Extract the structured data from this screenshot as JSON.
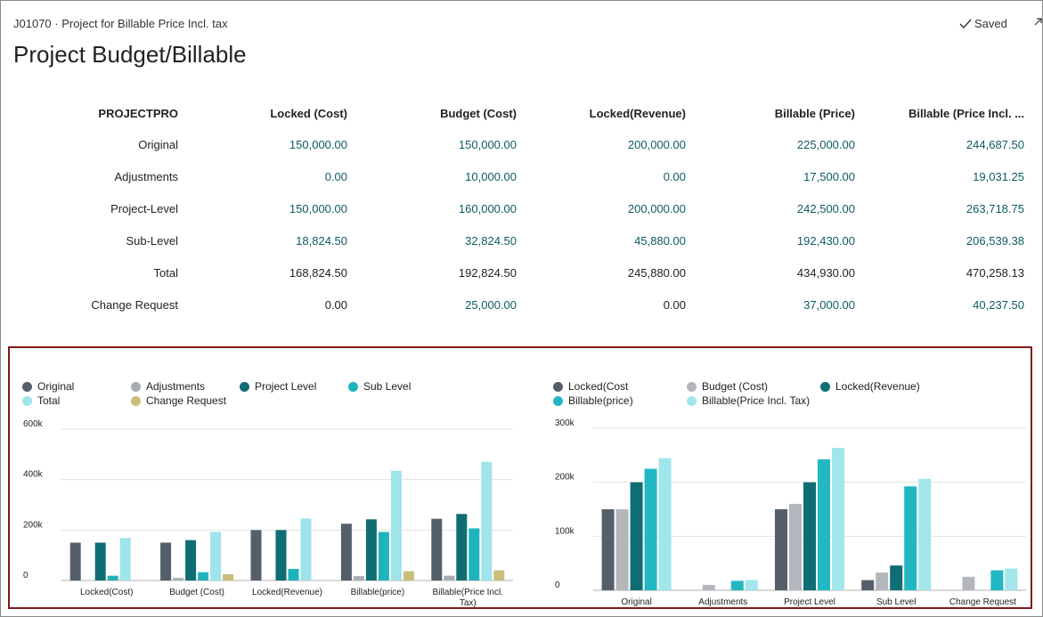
{
  "header": {
    "subtitle": "J01070 · Project for Billable Price Incl. tax",
    "saved_label": "Saved",
    "page_title": "Project Budget/Billable"
  },
  "table": {
    "corner": "PROJECTPRO",
    "columns": [
      "Locked (Cost)",
      "Budget (Cost)",
      "Locked(Revenue)",
      "Billable (Price)",
      "Billable (Price Incl. ..."
    ],
    "rows": [
      {
        "label": "Original",
        "values": [
          "150,000.00",
          "150,000.00",
          "200,000.00",
          "225,000.00",
          "244,687.50"
        ],
        "drill": [
          true,
          true,
          true,
          true,
          true
        ]
      },
      {
        "label": "Adjustments",
        "values": [
          "0.00",
          "10,000.00",
          "0.00",
          "17,500.00",
          "19,031.25"
        ],
        "drill": [
          true,
          true,
          true,
          true,
          true
        ]
      },
      {
        "label": "Project-Level",
        "values": [
          "150,000.00",
          "160,000.00",
          "200,000.00",
          "242,500.00",
          "263,718.75"
        ],
        "drill": [
          true,
          true,
          true,
          true,
          true
        ]
      },
      {
        "label": "Sub-Level",
        "values": [
          "18,824.50",
          "32,824.50",
          "45,880.00",
          "192,430.00",
          "206,539.38"
        ],
        "drill": [
          true,
          true,
          true,
          true,
          true
        ]
      },
      {
        "label": "Total",
        "values": [
          "168,824.50",
          "192,824.50",
          "245,880.00",
          "434,930.00",
          "470,258.13"
        ],
        "drill": [
          false,
          false,
          false,
          false,
          false
        ]
      },
      {
        "label": "Change Request",
        "values": [
          "0.00",
          "25,000.00",
          "0.00",
          "37,000.00",
          "40,237.50"
        ],
        "drill": [
          false,
          true,
          false,
          true,
          true
        ]
      }
    ]
  },
  "colors": {
    "original": "#555f6b",
    "adjustments": "#a8adb3",
    "project_level": "#0f6e74",
    "sub_level": "#1fb3bd",
    "total": "#9ee4ea",
    "change_request": "#c9bd78",
    "locked_cost": "#555f6b",
    "budget_cost": "#b3b7bc",
    "locked_revenue": "#0f6e74",
    "billable_price": "#22b7c2",
    "billable_incl": "#a2e6ec"
  },
  "chart_data": [
    {
      "type": "bar",
      "categories": [
        "Locked(Cost)",
        "Budget (Cost)",
        "Locked(Revenue)",
        "Billable(price)",
        "Billable(Price Incl. Tax)"
      ],
      "category_lines": [
        [
          "Locked(Cost)"
        ],
        [
          "Budget (Cost)"
        ],
        [
          "Locked(Revenue)"
        ],
        [
          "Billable(price)"
        ],
        [
          "Billable(Price Incl.",
          "Tax)"
        ]
      ],
      "series": [
        {
          "name": "Original",
          "color_key": "original",
          "values": [
            150000,
            150000,
            200000,
            225000,
            244687.5
          ]
        },
        {
          "name": "Adjustments",
          "color_key": "adjustments",
          "values": [
            0,
            10000,
            0,
            17500,
            19031.25
          ]
        },
        {
          "name": "Project Level",
          "color_key": "project_level",
          "values": [
            150000,
            160000,
            200000,
            242500,
            263718.75
          ]
        },
        {
          "name": "Sub Level",
          "color_key": "sub_level",
          "values": [
            18824.5,
            32824.5,
            45880,
            192430,
            206539.38
          ]
        },
        {
          "name": "Total",
          "color_key": "total",
          "values": [
            168824.5,
            192824.5,
            245880,
            434930,
            470258.13
          ]
        },
        {
          "name": "Change Request",
          "color_key": "change_request",
          "values": [
            0,
            25000,
            0,
            37000,
            40237.5
          ]
        }
      ],
      "ylim": [
        0,
        600000
      ],
      "yticks": [
        0,
        200000,
        400000,
        600000
      ],
      "ytick_labels": [
        "0",
        "200k",
        "400k",
        "600k"
      ],
      "legend": "top"
    },
    {
      "type": "bar",
      "categories": [
        "Original",
        "Adjustments",
        "Project Level",
        "Sub Level",
        "Change Request"
      ],
      "category_lines": [
        [
          "Original"
        ],
        [
          "Adjustments"
        ],
        [
          "Project Level"
        ],
        [
          "Sub Level"
        ],
        [
          "Change Request"
        ]
      ],
      "series": [
        {
          "name": "Locked(Cost",
          "color_key": "locked_cost",
          "values": [
            150000,
            0,
            150000,
            18824.5,
            0
          ]
        },
        {
          "name": "Budget (Cost)",
          "color_key": "budget_cost",
          "values": [
            150000,
            10000,
            160000,
            32824.5,
            25000
          ]
        },
        {
          "name": "Locked(Revenue)",
          "color_key": "locked_revenue",
          "values": [
            200000,
            0,
            200000,
            45880,
            0
          ]
        },
        {
          "name": "Billable(price)",
          "color_key": "billable_price",
          "values": [
            225000,
            17500,
            242500,
            192430,
            37000
          ]
        },
        {
          "name": "Billable(Price Incl. Tax)",
          "color_key": "billable_incl",
          "values": [
            244687.5,
            19031.25,
            263718.75,
            206539.38,
            40237.5
          ]
        }
      ],
      "ylim": [
        0,
        300000
      ],
      "yticks": [
        0,
        100000,
        200000,
        300000
      ],
      "ytick_labels": [
        "0",
        "100k",
        "200k",
        "300k"
      ],
      "legend": "top"
    }
  ]
}
